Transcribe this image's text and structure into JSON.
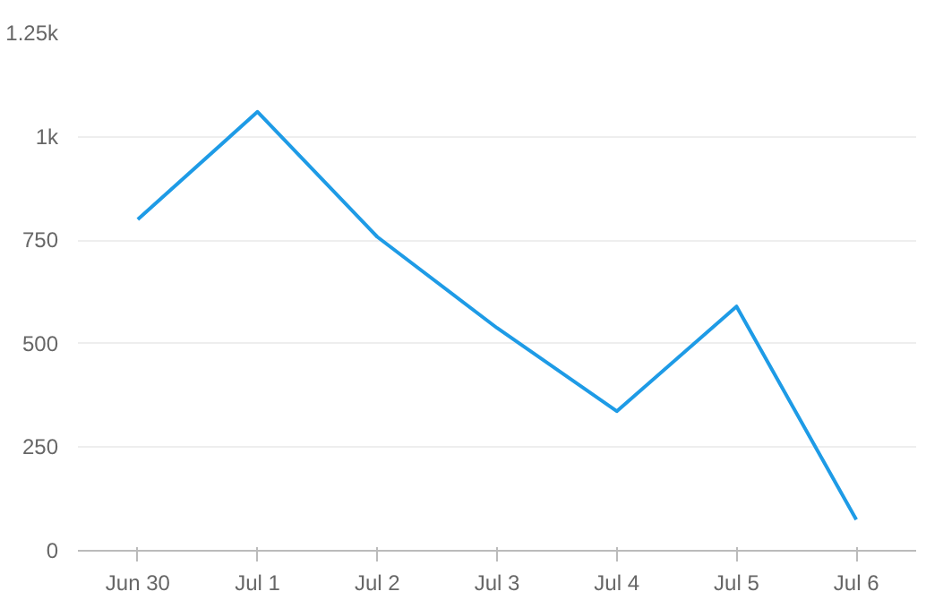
{
  "chart_data": {
    "type": "line",
    "categories": [
      "Jun 30",
      "Jul 1",
      "Jul 2",
      "Jul 3",
      "Jul 4",
      "Jul 5",
      "Jul 6"
    ],
    "series": [
      {
        "color": "#1e9be6",
        "values": [
          800,
          1060,
          758,
          538,
          337,
          590,
          75
        ]
      }
    ],
    "ylim": [
      0,
      1250
    ],
    "yticks": [
      0,
      250,
      500,
      750,
      {
        "value": 1000,
        "label": "1k"
      },
      {
        "value": 1250,
        "label": "1.25k"
      }
    ],
    "grid": "y",
    "marker": "none",
    "line_style": "solid"
  }
}
